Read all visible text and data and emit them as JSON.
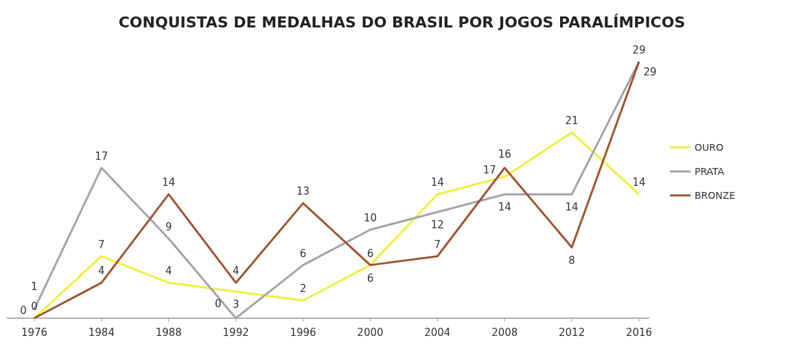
{
  "chart_data": {
    "type": "line",
    "title": "CONQUISTAS DE MEDALHAS DO BRASIL POR JOGOS PARALÍMPICOS",
    "categories": [
      "1976",
      "1984",
      "1988",
      "1992",
      "1996",
      "2000",
      "2004",
      "2008",
      "2012",
      "2016"
    ],
    "series": [
      {
        "name": "OURO",
        "color": "#eef03c",
        "values": [
          0,
          7,
          4,
          3,
          2,
          6,
          14,
          16,
          21,
          14
        ]
      },
      {
        "name": "PRATA",
        "color": "#a3a3ab",
        "values": [
          1,
          17,
          9,
          0,
          6,
          10,
          12,
          14,
          14,
          29
        ]
      },
      {
        "name": "BRONZE",
        "color": "#a0522d",
        "values": [
          0,
          4,
          14,
          4,
          13,
          6,
          7,
          17,
          8,
          29
        ]
      }
    ],
    "data_labels": true,
    "legend": "right",
    "tick_labels": "x",
    "grid": false,
    "marker": "none",
    "line_style": "solid"
  }
}
